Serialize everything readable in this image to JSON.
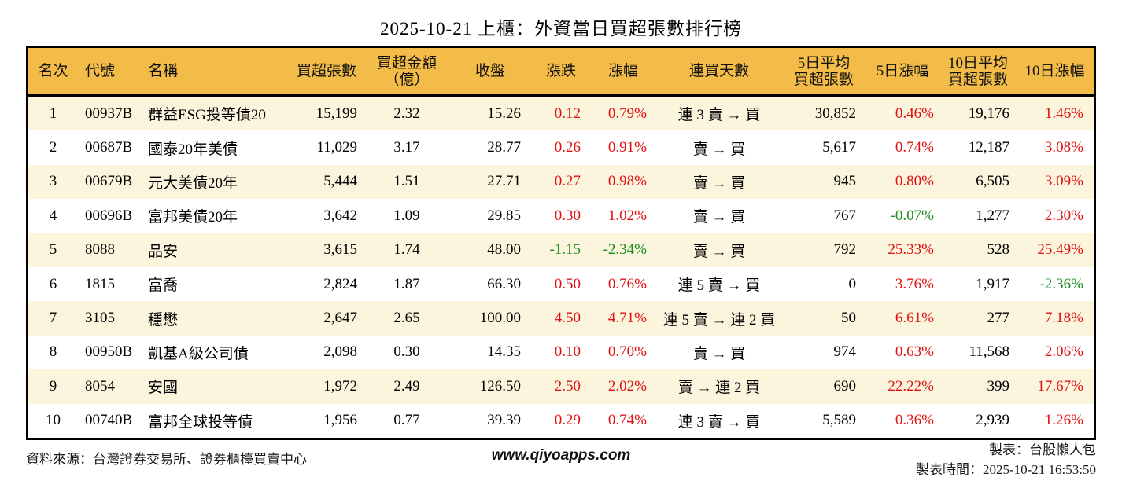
{
  "chart_data": {
    "type": "table",
    "title": "2025-10-21 上櫃：外資當日買超張數排行榜",
    "columns": [
      {
        "key": "rank",
        "label": "名次"
      },
      {
        "key": "code",
        "label": "代號"
      },
      {
        "key": "name",
        "label": "名稱"
      },
      {
        "key": "net_buy",
        "label": "買超張數"
      },
      {
        "key": "amount",
        "label": "買超金額\n（億）"
      },
      {
        "key": "close",
        "label": "收盤"
      },
      {
        "key": "change",
        "label": "漲跌"
      },
      {
        "key": "change_pct",
        "label": "漲幅"
      },
      {
        "key": "streak",
        "label": "連買天數"
      },
      {
        "key": "avg5",
        "label": "5日平均\n買超張數"
      },
      {
        "key": "pct5",
        "label": "5日漲幅"
      },
      {
        "key": "avg10",
        "label": "10日平均\n買超張數"
      },
      {
        "key": "pct10",
        "label": "10日漲幅"
      }
    ],
    "rows": [
      {
        "rank": "1",
        "code": "00937B",
        "name": "群益ESG投等債20",
        "net_buy": "15,199",
        "amount": "2.32",
        "close": "15.26",
        "change": "0.12",
        "change_pct": "0.79%",
        "streak": "連 3 賣 → 買",
        "avg5": "30,852",
        "pct5": "0.46%",
        "avg10": "19,176",
        "pct10": "1.46%"
      },
      {
        "rank": "2",
        "code": "00687B",
        "name": "國泰20年美債",
        "net_buy": "11,029",
        "amount": "3.17",
        "close": "28.77",
        "change": "0.26",
        "change_pct": "0.91%",
        "streak": "賣 → 買",
        "avg5": "5,617",
        "pct5": "0.74%",
        "avg10": "12,187",
        "pct10": "3.08%"
      },
      {
        "rank": "3",
        "code": "00679B",
        "name": "元大美債20年",
        "net_buy": "5,444",
        "amount": "1.51",
        "close": "27.71",
        "change": "0.27",
        "change_pct": "0.98%",
        "streak": "賣 → 買",
        "avg5": "945",
        "pct5": "0.80%",
        "avg10": "6,505",
        "pct10": "3.09%"
      },
      {
        "rank": "4",
        "code": "00696B",
        "name": "富邦美債20年",
        "net_buy": "3,642",
        "amount": "1.09",
        "close": "29.85",
        "change": "0.30",
        "change_pct": "1.02%",
        "streak": "賣 → 買",
        "avg5": "767",
        "pct5": "-0.07%",
        "avg10": "1,277",
        "pct10": "2.30%"
      },
      {
        "rank": "5",
        "code": "8088",
        "name": "品安",
        "net_buy": "3,615",
        "amount": "1.74",
        "close": "48.00",
        "change": "-1.15",
        "change_pct": "-2.34%",
        "streak": "賣 → 買",
        "avg5": "792",
        "pct5": "25.33%",
        "avg10": "528",
        "pct10": "25.49%"
      },
      {
        "rank": "6",
        "code": "1815",
        "name": "富喬",
        "net_buy": "2,824",
        "amount": "1.87",
        "close": "66.30",
        "change": "0.50",
        "change_pct": "0.76%",
        "streak": "連 5 賣 → 買",
        "avg5": "0",
        "pct5": "3.76%",
        "avg10": "1,917",
        "pct10": "-2.36%"
      },
      {
        "rank": "7",
        "code": "3105",
        "name": "穩懋",
        "net_buy": "2,647",
        "amount": "2.65",
        "close": "100.00",
        "change": "4.50",
        "change_pct": "4.71%",
        "streak": "連 5 賣 → 連 2 買",
        "avg5": "50",
        "pct5": "6.61%",
        "avg10": "277",
        "pct10": "7.18%"
      },
      {
        "rank": "8",
        "code": "00950B",
        "name": "凱基A級公司債",
        "net_buy": "2,098",
        "amount": "0.30",
        "close": "14.35",
        "change": "0.10",
        "change_pct": "0.70%",
        "streak": "賣 → 買",
        "avg5": "974",
        "pct5": "0.63%",
        "avg10": "11,568",
        "pct10": "2.06%"
      },
      {
        "rank": "9",
        "code": "8054",
        "name": "安國",
        "net_buy": "1,972",
        "amount": "2.49",
        "close": "126.50",
        "change": "2.50",
        "change_pct": "2.02%",
        "streak": "賣 → 連 2 買",
        "avg5": "690",
        "pct5": "22.22%",
        "avg10": "399",
        "pct10": "17.67%"
      },
      {
        "rank": "10",
        "code": "00740B",
        "name": "富邦全球投等債",
        "net_buy": "1,956",
        "amount": "0.77",
        "close": "39.39",
        "change": "0.29",
        "change_pct": "0.74%",
        "streak": "連 3 賣 → 買",
        "avg5": "5,589",
        "pct5": "0.36%",
        "avg10": "2,939",
        "pct10": "1.26%"
      }
    ]
  },
  "footer": {
    "source": "資料來源：台灣證券交易所、證券櫃檯買賣中心",
    "website": "www.qiyoapps.com",
    "maker": "製表：台股懶人包",
    "made_time": "製表時間：2025-10-21 16:53:50"
  },
  "colors": {
    "header_bg": "#F3BC48",
    "row_alt_bg": "#FCF5DE",
    "up": "#E01111",
    "down": "#1E8C1E",
    "border": "#000000"
  }
}
